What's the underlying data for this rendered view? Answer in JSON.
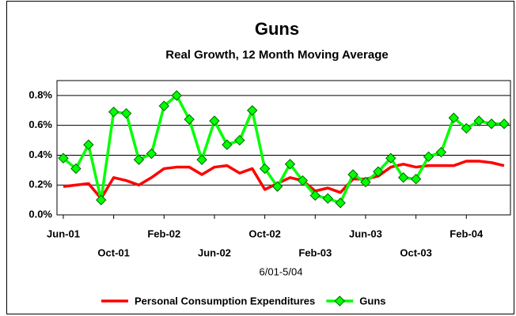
{
  "chart_data": {
    "type": "line",
    "title": "Guns",
    "subtitle": "Real Growth, 12 Month Moving Average",
    "x_label": "6/01-5/04",
    "categories": [
      "Jun-01",
      null,
      null,
      null,
      "Oct-01",
      null,
      null,
      null,
      "Feb-02",
      null,
      null,
      null,
      "Jun-02",
      null,
      null,
      null,
      "Oct-02",
      null,
      null,
      null,
      "Feb-03",
      null,
      null,
      null,
      "Jun-03",
      null,
      null,
      null,
      "Oct-03",
      null,
      null,
      null,
      "Feb-04",
      null,
      null,
      null
    ],
    "series": [
      {
        "name": "Personal Consumption Expenditures",
        "color": "#ff0000",
        "marker": "none",
        "values": [
          0.19,
          0.2,
          0.21,
          0.11,
          0.25,
          0.23,
          0.2,
          0.25,
          0.31,
          0.32,
          0.32,
          0.27,
          0.32,
          0.33,
          0.28,
          0.31,
          0.17,
          0.21,
          0.25,
          0.23,
          0.16,
          0.18,
          0.15,
          0.24,
          0.24,
          0.26,
          0.32,
          0.34,
          0.32,
          0.33,
          0.33,
          0.33,
          0.36,
          0.36,
          0.35,
          0.33
        ]
      },
      {
        "name": "Guns",
        "color": "#00ff00",
        "marker": "diamond",
        "values": [
          0.38,
          0.31,
          0.47,
          0.1,
          0.69,
          0.68,
          0.37,
          0.41,
          0.73,
          0.8,
          0.64,
          0.37,
          0.63,
          0.47,
          0.5,
          0.7,
          0.31,
          0.19,
          0.34,
          0.23,
          0.13,
          0.11,
          0.08,
          0.27,
          0.22,
          0.29,
          0.38,
          0.25,
          0.24,
          0.39,
          0.42,
          0.65,
          0.58,
          0.63,
          0.61,
          0.61
        ]
      }
    ],
    "ylim": [
      0,
      0.9
    ],
    "yticks": [
      {
        "value": 0,
        "label": "0.0%"
      },
      {
        "value": 0.2,
        "label": "0.2%"
      },
      {
        "value": 0.4,
        "label": "0.4%"
      },
      {
        "value": 0.6,
        "label": "0.6%"
      },
      {
        "value": 0.8,
        "label": "0.8%"
      }
    ],
    "grid": true,
    "legend": "bottom"
  }
}
